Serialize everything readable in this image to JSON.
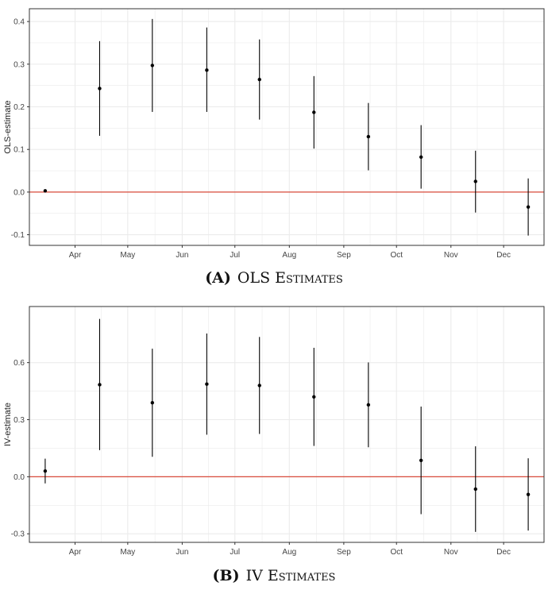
{
  "chart_data": [
    {
      "type": "scatter",
      "subtype": "point-estimates-with-intervals",
      "caption_letter": "(A)",
      "caption_text": "OLS Estimates",
      "title": "",
      "xlabel": "",
      "ylabel": "OLS-estimate",
      "x_tick_labels": [
        "Apr",
        "May",
        "Jun",
        "Jul",
        "Aug",
        "Sep",
        "Oct",
        "Nov",
        "Dec"
      ],
      "y_ticks": [
        -0.1,
        0.0,
        0.1,
        0.2,
        0.3,
        0.4
      ],
      "y_tick_labels": [
        "-0.1",
        "0.0",
        "0.1",
        "0.2",
        "0.3",
        "0.4"
      ],
      "ylim": [
        -0.125,
        0.43
      ],
      "reference_line": 0,
      "grid": true,
      "legend": "none",
      "colors": {
        "reference_line": "#d84b3b",
        "points": "#000000",
        "grid": "#ebebeb",
        "border": "#333333"
      },
      "points": [
        {
          "x": "Mar 15",
          "y": 0.003,
          "lo": null,
          "hi": null
        },
        {
          "x": "Apr 15",
          "y": 0.243,
          "lo": 0.132,
          "hi": 0.354
        },
        {
          "x": "May 15",
          "y": 0.297,
          "lo": 0.188,
          "hi": 0.406
        },
        {
          "x": "Jun 15",
          "y": 0.286,
          "lo": 0.188,
          "hi": 0.386
        },
        {
          "x": "Jul 15",
          "y": 0.264,
          "lo": 0.17,
          "hi": 0.358
        },
        {
          "x": "Aug 15",
          "y": 0.187,
          "lo": 0.102,
          "hi": 0.272
        },
        {
          "x": "Sep 15",
          "y": 0.13,
          "lo": 0.051,
          "hi": 0.209
        },
        {
          "x": "Oct 15",
          "y": 0.082,
          "lo": 0.008,
          "hi": 0.157
        },
        {
          "x": "Nov 15",
          "y": 0.025,
          "lo": -0.048,
          "hi": 0.097
        },
        {
          "x": "Dec 15",
          "y": -0.035,
          "lo": -0.102,
          "hi": 0.032
        }
      ]
    },
    {
      "type": "scatter",
      "subtype": "point-estimates-with-intervals",
      "caption_letter": "(B)",
      "caption_text": "IV Estimates",
      "title": "",
      "xlabel": "",
      "ylabel": "IV-estimate",
      "x_tick_labels": [
        "Apr",
        "May",
        "Jun",
        "Jul",
        "Aug",
        "Sep",
        "Oct",
        "Nov",
        "Dec"
      ],
      "y_ticks": [
        -0.3,
        0.0,
        0.3,
        0.6
      ],
      "y_tick_labels": [
        "-0.3",
        "0.0",
        "0.3",
        "0.6"
      ],
      "ylim": [
        -0.345,
        0.895
      ],
      "reference_line": 0,
      "grid": true,
      "legend": "none",
      "colors": {
        "reference_line": "#d84b3b",
        "points": "#000000",
        "grid": "#ebebeb",
        "border": "#333333"
      },
      "points": [
        {
          "x": "Mar 15",
          "y": 0.03,
          "lo": -0.035,
          "hi": 0.095
        },
        {
          "x": "Apr 15",
          "y": 0.484,
          "lo": 0.14,
          "hi": 0.83
        },
        {
          "x": "May 15",
          "y": 0.389,
          "lo": 0.105,
          "hi": 0.673
        },
        {
          "x": "Jun 15",
          "y": 0.487,
          "lo": 0.221,
          "hi": 0.753
        },
        {
          "x": "Jul 15",
          "y": 0.48,
          "lo": 0.225,
          "hi": 0.735
        },
        {
          "x": "Aug 15",
          "y": 0.42,
          "lo": 0.162,
          "hi": 0.678
        },
        {
          "x": "Sep 15",
          "y": 0.378,
          "lo": 0.155,
          "hi": 0.601
        },
        {
          "x": "Oct 15",
          "y": 0.086,
          "lo": -0.197,
          "hi": 0.369
        },
        {
          "x": "Nov 15",
          "y": -0.065,
          "lo": -0.29,
          "hi": 0.16
        },
        {
          "x": "Dec 15",
          "y": -0.093,
          "lo": -0.283,
          "hi": 0.097
        }
      ]
    }
  ]
}
